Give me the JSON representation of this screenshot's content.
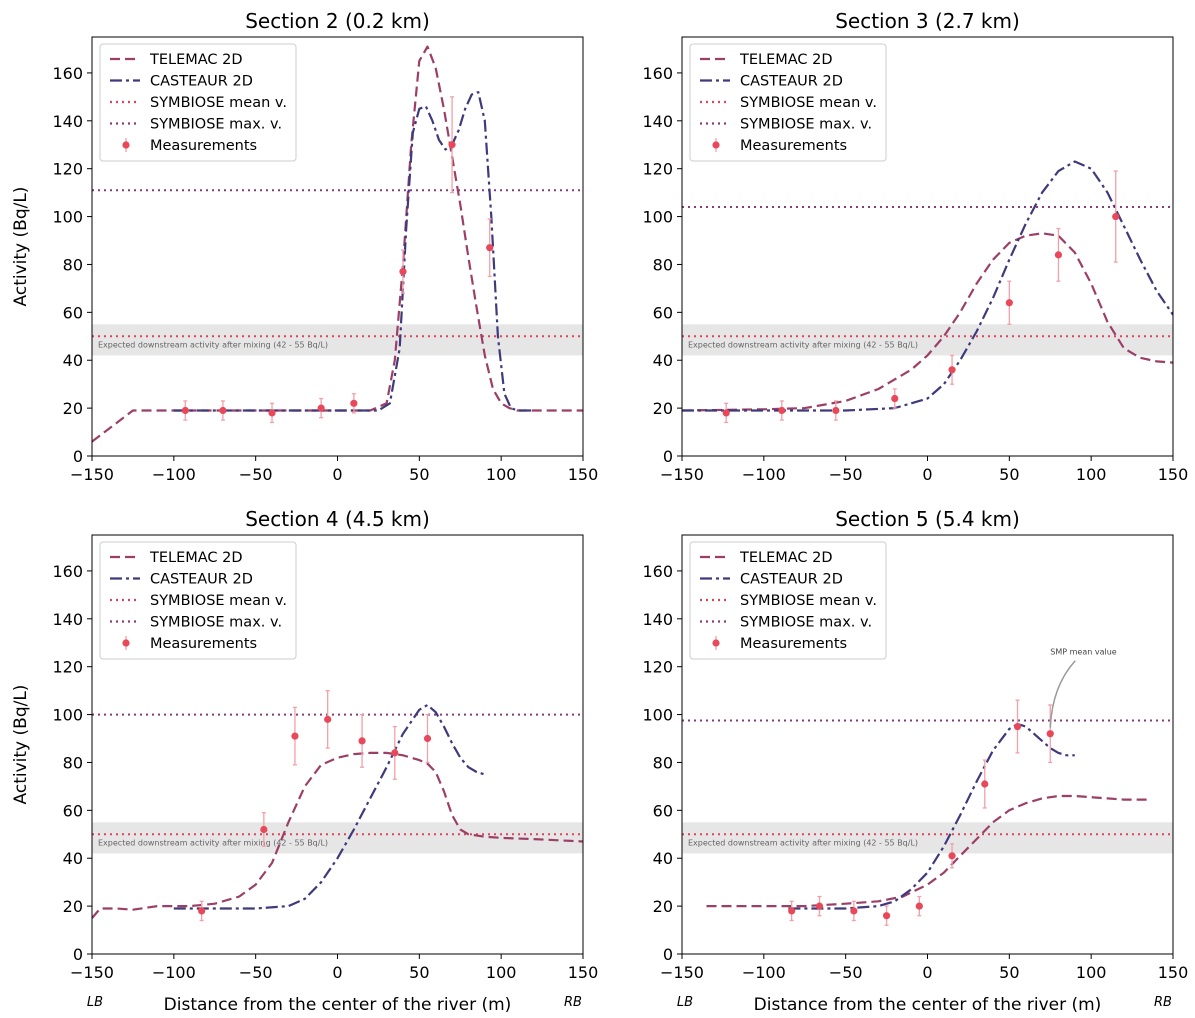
{
  "figure": {
    "ylabel": "Activity (Bq/L)",
    "xlabel": "Distance from the center of the river (m)",
    "lb_label": "LB",
    "rb_label": "RB",
    "band_text": "Expected downstream activity after mixing (42 - 55 Bq/L)",
    "smp_annotation": "SMP mean value",
    "colors": {
      "telemac": "#9c3f66",
      "casteaur": "#3e3a7c",
      "symb_mean": "#e0425a",
      "symb_max": "#8b3a78",
      "measure": "#e8495a",
      "err": "#f2a0a8",
      "band": "#e6e6e6"
    }
  },
  "legend": [
    {
      "key": "telemac",
      "label": "TELEMAC 2D"
    },
    {
      "key": "casteaur",
      "label": "CASTEAUR 2D"
    },
    {
      "key": "symb_mean",
      "label": "SYMBIOSE mean v."
    },
    {
      "key": "symb_max",
      "label": "SYMBIOSE max. v."
    },
    {
      "key": "measure",
      "label": "Measurements"
    }
  ],
  "chart_data": [
    {
      "type": "line",
      "title": "Section 2 (0.2 km)",
      "xlim": [
        -150,
        150
      ],
      "ylim": [
        0,
        175
      ],
      "xticks": [
        -150,
        -100,
        -50,
        0,
        50,
        100,
        150
      ],
      "yticks": [
        0,
        20,
        40,
        60,
        80,
        100,
        120,
        140,
        160
      ],
      "band": [
        42,
        55
      ],
      "symbiose_mean": 50,
      "symbiose_max": 111,
      "series": [
        {
          "name": "TELEMAC 2D",
          "x": [
            -150,
            -125,
            -100,
            -50,
            0,
            20,
            30,
            35,
            40,
            45,
            50,
            55,
            60,
            65,
            70,
            75,
            80,
            85,
            90,
            95,
            100,
            105,
            110,
            150
          ],
          "y": [
            6,
            19,
            19,
            19,
            19,
            19,
            22,
            40,
            80,
            130,
            165,
            171,
            162,
            145,
            125,
            105,
            83,
            62,
            42,
            28,
            22,
            20,
            19,
            19
          ]
        },
        {
          "name": "CASTEAUR 2D",
          "x": [
            -100,
            0,
            25,
            32,
            38,
            42,
            46,
            50,
            54,
            58,
            62,
            66,
            70,
            74,
            78,
            82,
            86,
            90,
            94,
            98,
            102,
            106,
            110,
            120
          ],
          "y": [
            19,
            19,
            19,
            22,
            45,
            95,
            135,
            145,
            146,
            140,
            132,
            128,
            130,
            136,
            145,
            151,
            152,
            140,
            100,
            50,
            26,
            20,
            19,
            19
          ]
        }
      ],
      "measurements": {
        "x": [
          -93,
          -70,
          -40,
          -10,
          10,
          40,
          70,
          93
        ],
        "y": [
          19,
          19,
          18,
          20,
          22,
          77,
          130,
          87
        ],
        "err": [
          4,
          4,
          4,
          4,
          4,
          9,
          20,
          12
        ]
      }
    },
    {
      "type": "line",
      "title": "Section 3 (2.7 km)",
      "xlim": [
        -150,
        150
      ],
      "ylim": [
        0,
        175
      ],
      "xticks": [
        -150,
        -100,
        -50,
        0,
        50,
        100,
        150
      ],
      "yticks": [
        0,
        20,
        40,
        60,
        80,
        100,
        120,
        140,
        160
      ],
      "band": [
        42,
        55
      ],
      "symbiose_mean": 50,
      "symbiose_max": 104,
      "series": [
        {
          "name": "TELEMAC 2D",
          "x": [
            -150,
            -100,
            -75,
            -50,
            -30,
            -10,
            0,
            10,
            20,
            30,
            40,
            50,
            60,
            70,
            80,
            90,
            100,
            110,
            120,
            130,
            140,
            150
          ],
          "y": [
            19,
            19.5,
            20,
            23,
            28,
            36,
            42,
            50,
            60,
            72,
            82,
            89,
            92,
            93,
            92,
            85,
            72,
            56,
            45,
            41,
            39.5,
            39
          ]
        },
        {
          "name": "CASTEAUR 2D",
          "x": [
            -150,
            -50,
            -20,
            0,
            10,
            20,
            30,
            40,
            50,
            60,
            70,
            80,
            90,
            100,
            110,
            120,
            130,
            140,
            150
          ],
          "y": [
            19,
            19,
            20,
            24,
            30,
            40,
            52,
            66,
            82,
            97,
            110,
            119,
            123,
            120,
            110,
            96,
            82,
            69,
            59
          ]
        }
      ],
      "measurements": {
        "x": [
          -123,
          -89,
          -56,
          -20,
          15,
          50,
          80,
          115
        ],
        "y": [
          18,
          19,
          19,
          24,
          36,
          64,
          84,
          100
        ],
        "err": [
          4,
          4,
          4,
          4,
          6,
          9,
          11,
          19
        ]
      }
    },
    {
      "type": "line",
      "title": "Section 4 (4.5 km)",
      "xlim": [
        -150,
        150
      ],
      "ylim": [
        0,
        175
      ],
      "xticks": [
        -150,
        -100,
        -50,
        0,
        50,
        100,
        150
      ],
      "yticks": [
        0,
        20,
        40,
        60,
        80,
        100,
        120,
        140,
        160
      ],
      "band": [
        42,
        55
      ],
      "symbiose_mean": 50,
      "symbiose_max": 100,
      "series": [
        {
          "name": "TELEMAC 2D",
          "x": [
            -150,
            -145,
            -135,
            -125,
            -110,
            -90,
            -75,
            -60,
            -50,
            -40,
            -30,
            -20,
            -10,
            0,
            10,
            20,
            30,
            40,
            50,
            55,
            60,
            65,
            70,
            75,
            80,
            90,
            100,
            120,
            150
          ],
          "y": [
            15,
            19,
            19,
            18.5,
            20,
            20,
            21,
            24,
            29,
            38,
            55,
            70,
            79,
            82,
            83.5,
            84,
            84,
            83,
            81,
            79.5,
            76,
            68,
            58,
            52,
            50,
            49,
            48.5,
            48,
            47
          ]
        },
        {
          "name": "CASTEAUR 2D",
          "x": [
            -100,
            -50,
            -30,
            -20,
            -10,
            0,
            10,
            20,
            30,
            40,
            50,
            55,
            60,
            65,
            70,
            75,
            80,
            85,
            90
          ],
          "y": [
            19,
            19,
            20,
            23,
            30,
            40,
            52,
            65,
            78,
            92,
            102,
            104,
            101,
            95,
            88,
            82,
            78,
            76,
            75
          ]
        }
      ],
      "measurements": {
        "x": [
          -83,
          -45,
          -26,
          -6,
          15,
          35,
          55
        ],
        "y": [
          18,
          52,
          91,
          98,
          89,
          84,
          90
        ],
        "err": [
          4,
          7,
          12,
          12,
          11,
          11,
          10
        ]
      }
    },
    {
      "type": "line",
      "title": "Section 5 (5.4 km)",
      "xlim": [
        -150,
        150
      ],
      "ylim": [
        0,
        175
      ],
      "xticks": [
        -150,
        -100,
        -50,
        0,
        50,
        100,
        150
      ],
      "yticks": [
        0,
        20,
        40,
        60,
        80,
        100,
        120,
        140,
        160
      ],
      "band": [
        42,
        55
      ],
      "symbiose_mean": 50,
      "symbiose_max": 97.5,
      "series": [
        {
          "name": "TELEMAC 2D",
          "x": [
            -135,
            -100,
            -75,
            -50,
            -30,
            -15,
            0,
            10,
            20,
            30,
            40,
            50,
            60,
            70,
            80,
            90,
            100,
            110,
            120,
            135
          ],
          "y": [
            20,
            20,
            20,
            21,
            22,
            24,
            29,
            34,
            41,
            48,
            55,
            60,
            63,
            65,
            66,
            66,
            65.5,
            65,
            64.5,
            64.5
          ]
        },
        {
          "name": "CASTEAUR 2D",
          "x": [
            -85,
            -50,
            -30,
            -20,
            -10,
            0,
            10,
            20,
            30,
            40,
            50,
            55,
            60,
            65,
            70,
            75,
            80,
            85,
            90
          ],
          "y": [
            19,
            19,
            20,
            22,
            27,
            34,
            45,
            58,
            72,
            85,
            94,
            96,
            95,
            92,
            89,
            86,
            84,
            83,
            83
          ]
        }
      ],
      "measurements": {
        "x": [
          -83,
          -66,
          -45,
          -25,
          -5,
          15,
          35,
          55,
          75
        ],
        "y": [
          18,
          20,
          18,
          16,
          20,
          41,
          71,
          95,
          92
        ],
        "err": [
          4,
          4,
          4,
          4,
          4,
          5,
          10,
          11,
          12
        ]
      }
    }
  ]
}
